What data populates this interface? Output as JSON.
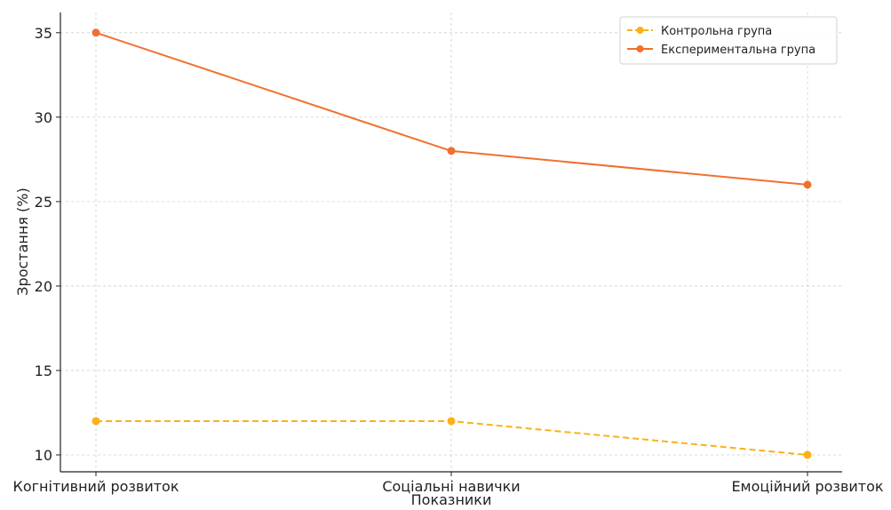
{
  "chart_data": {
    "type": "line",
    "title": "",
    "xlabel": "Показники",
    "ylabel": "Зростання (%)",
    "categories": [
      "Когнітивний розвиток",
      "Соціальні навички",
      "Емоційний розвиток"
    ],
    "ylim": [
      9,
      36.2
    ],
    "yticks": [
      10,
      15,
      20,
      25,
      30,
      35
    ],
    "grid": true,
    "legend_position": "top-right",
    "series": [
      {
        "name": "Контрольна група",
        "values": [
          12,
          12,
          10
        ],
        "color": "#FBB117",
        "line_style": "dashed",
        "marker": "circle"
      },
      {
        "name": "Експериментальна група",
        "values": [
          35,
          28,
          26
        ],
        "color": "#F07030",
        "line_style": "solid",
        "marker": "circle"
      }
    ]
  }
}
